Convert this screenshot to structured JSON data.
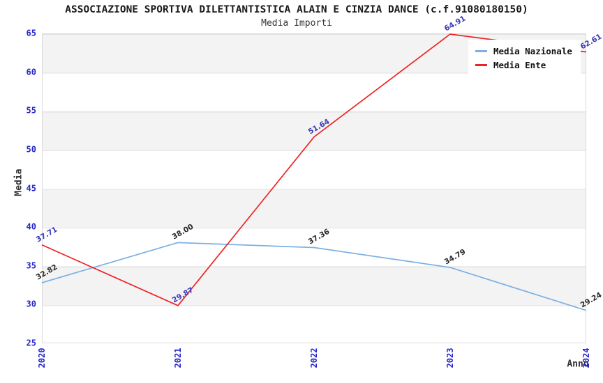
{
  "header": {
    "title": "ASSOCIAZIONE SPORTIVA DILETTANTISTICA ALAIN E CINZIA DANCE (c.f.91080180150)",
    "subtitle": "Media Importi"
  },
  "chart_data": {
    "type": "line",
    "categories": [
      "2020",
      "2021",
      "2022",
      "2023",
      "2024"
    ],
    "series": [
      {
        "name": "Media Nazionale",
        "values": [
          32.82,
          38.0,
          37.36,
          34.79,
          29.24
        ],
        "color": "#7cb0e4",
        "label_color": "#2a2a2a"
      },
      {
        "name": "Media Ente",
        "values": [
          37.71,
          29.87,
          51.64,
          64.91,
          62.61
        ],
        "color": "#ee2222",
        "label_color": "#3a3ab8"
      }
    ],
    "title": "Media Importi",
    "xlabel": "Anno",
    "ylabel": "Media",
    "ylim": [
      25,
      65
    ],
    "y_ticks": [
      65,
      60,
      55,
      50,
      45,
      40,
      35,
      30,
      25
    ],
    "grid": true,
    "band_fill": true,
    "legend_position": "top-right",
    "tick_label_color": "#2525cb"
  }
}
